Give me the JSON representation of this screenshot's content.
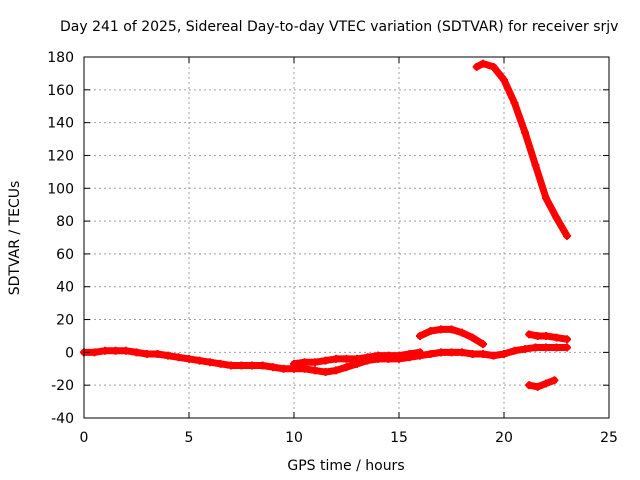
{
  "chart_data": {
    "type": "scatter",
    "title": "Day 241 of 2025, Sidereal Day-to-day VTEC variation (SDTVAR) for receiver srjv",
    "xlabel": "GPS time / hours",
    "ylabel": "SDTVAR / TECUs",
    "xlim": [
      0,
      25
    ],
    "ylim": [
      -40,
      180
    ],
    "xticks": [
      0,
      5,
      10,
      15,
      20,
      25
    ],
    "yticks": [
      -40,
      -20,
      0,
      20,
      40,
      60,
      80,
      100,
      120,
      140,
      160,
      180
    ],
    "grid": true,
    "marker_color": "#ff0000",
    "series": [
      {
        "name": "main-track",
        "x": [
          0,
          0.5,
          1,
          1.5,
          2,
          2.5,
          3,
          3.5,
          4,
          4.5,
          5,
          5.5,
          6,
          6.5,
          7,
          7.5,
          8,
          8.5,
          9,
          9.5,
          10,
          10.5,
          11,
          11.5,
          12,
          12.5,
          13,
          13.5,
          14,
          14.5,
          15,
          15.5,
          16,
          16.5,
          17,
          17.5,
          18,
          18.5,
          19,
          19.5,
          20,
          20.5,
          21,
          21.5,
          22,
          22.5,
          23
        ],
        "y": [
          0,
          0,
          1,
          1,
          1,
          0,
          -1,
          -1,
          -2,
          -3,
          -4,
          -5,
          -6,
          -7,
          -8,
          -8,
          -8,
          -8,
          -9,
          -10,
          -10,
          -10,
          -11,
          -12,
          -11,
          -9,
          -7,
          -5,
          -4,
          -4,
          -4,
          -3,
          -2,
          -1,
          0,
          0,
          0,
          -1,
          -1,
          -2,
          -1,
          1,
          2,
          3,
          3,
          3,
          3
        ]
      },
      {
        "name": "upper-track-a",
        "x": [
          10,
          10.5,
          11,
          11.5,
          12,
          12.5,
          13,
          13.5,
          14,
          14.5,
          15,
          15.5,
          16
        ],
        "y": [
          -7,
          -6,
          -6,
          -5,
          -4,
          -4,
          -4,
          -3,
          -2,
          -2,
          -2,
          -1,
          0
        ]
      },
      {
        "name": "arc-16-19",
        "x": [
          16,
          16.5,
          17,
          17.5,
          18,
          18.5,
          19
        ],
        "y": [
          10,
          13,
          14,
          14,
          12,
          9,
          5
        ]
      },
      {
        "name": "high-track",
        "x": [
          18.7,
          19,
          19.5,
          20,
          20.5,
          21,
          21.5,
          22,
          22.5,
          23
        ],
        "y": [
          174,
          176,
          174,
          166,
          152,
          134,
          114,
          94,
          82,
          71
        ]
      },
      {
        "name": "late-upper",
        "x": [
          21.2,
          21.6,
          22,
          22.5,
          23
        ],
        "y": [
          11,
          10,
          10,
          9,
          8
        ]
      },
      {
        "name": "late-lower",
        "x": [
          21.2,
          21.6,
          22,
          22.4
        ],
        "y": [
          -20,
          -21,
          -19,
          -17
        ]
      }
    ]
  }
}
